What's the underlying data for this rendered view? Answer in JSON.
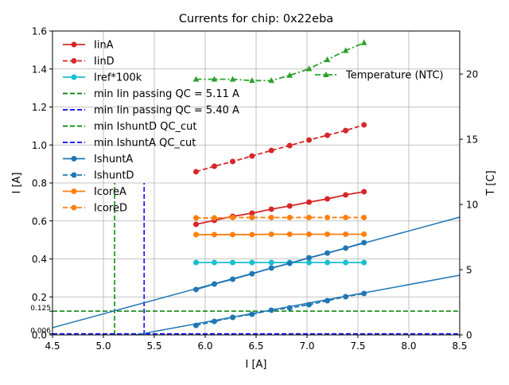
{
  "chart_data": {
    "type": "line",
    "title": "Currents for chip: 0x22eba",
    "xlabel": "I [A]",
    "ylabel": "I [A]",
    "ylabel_right": "T [C]",
    "xlim": [
      4.5,
      8.5
    ],
    "ylim": [
      0.0,
      1.6
    ],
    "ylim_right": [
      0,
      23.3
    ],
    "grid": true,
    "x_ticks": [
      4.5,
      5.0,
      5.5,
      6.0,
      6.5,
      7.0,
      7.5,
      8.0,
      8.5
    ],
    "x_tick_labels": [
      "4.5",
      "5.0",
      "5.5",
      "6.0",
      "6.5",
      "7.0",
      "7.5",
      "8.0",
      "8.5"
    ],
    "y_ticks": [
      0.0,
      0.2,
      0.4,
      0.6,
      0.8,
      1.0,
      1.2,
      1.4,
      1.6
    ],
    "y_tick_labels": [
      "0.0",
      "0.2",
      "0.4",
      "0.6",
      "0.8",
      "1.0",
      "1.2",
      "1.4",
      "1.6"
    ],
    "y_extra_ticks": [
      0.125,
      0.006
    ],
    "y_extra_tick_labels": [
      "0.125",
      "0.006"
    ],
    "y_right_ticks": [
      0,
      5,
      10,
      15,
      20
    ],
    "y_right_tick_labels": [
      "0",
      "5",
      "10",
      "15",
      "20"
    ],
    "x": [
      5.91,
      6.09,
      6.27,
      6.46,
      6.65,
      6.83,
      7.02,
      7.2,
      7.38,
      7.56
    ],
    "series": [
      {
        "name": "IinA",
        "color": "#d62728",
        "dash": "solid",
        "marker": "circle",
        "values": [
          0.582,
          0.603,
          0.624,
          0.641,
          0.662,
          0.679,
          0.699,
          0.716,
          0.737,
          0.754
        ]
      },
      {
        "name": "IinD",
        "color": "#d62728",
        "dash": "dashed",
        "marker": "circle",
        "values": [
          0.859,
          0.888,
          0.913,
          0.942,
          0.971,
          0.997,
          1.026,
          1.051,
          1.076,
          1.106
        ]
      },
      {
        "name": "Iref*100k",
        "color": "#17becf",
        "dash": "solid",
        "marker": "circle",
        "values": [
          0.381,
          0.381,
          0.381,
          0.381,
          0.381,
          0.381,
          0.381,
          0.381,
          0.381,
          0.381
        ]
      },
      {
        "name": "IshuntA",
        "color": "#1f77b4",
        "dash": "solid",
        "marker": "circle",
        "values": [
          0.239,
          0.268,
          0.293,
          0.322,
          0.352,
          0.377,
          0.406,
          0.431,
          0.457,
          0.486
        ]
      },
      {
        "name": "IshuntD",
        "color": "#1f77b4",
        "dash": "dashed",
        "marker": "circle",
        "values": [
          0.05,
          0.071,
          0.092,
          0.109,
          0.13,
          0.142,
          0.159,
          0.18,
          0.201,
          0.218
        ]
      },
      {
        "name": "IcoreA",
        "color": "#ff7f0e",
        "dash": "solid",
        "marker": "circle",
        "values": [
          0.528,
          0.528,
          0.528,
          0.528,
          0.53,
          0.53,
          0.53,
          0.53,
          0.53,
          0.53
        ]
      },
      {
        "name": "IcoreD",
        "color": "#ff7f0e",
        "dash": "dashed",
        "marker": "circle",
        "values": [
          0.616,
          0.616,
          0.618,
          0.618,
          0.618,
          0.618,
          0.618,
          0.618,
          0.618,
          0.618
        ]
      }
    ],
    "fit_lines": [
      {
        "name": "IshuntA fit",
        "color": "#1f77b4",
        "x": [
          4.5,
          8.5
        ],
        "y": [
          0.038,
          0.62
        ]
      },
      {
        "name": "IshuntD fit",
        "color": "#1f77b4",
        "x": [
          5.32,
          8.5
        ],
        "y": [
          0.0,
          0.314
        ]
      }
    ],
    "reference_lines": [
      {
        "name": "min Iin passing QC = 5.11 A",
        "orientation": "vertical",
        "value": 5.11,
        "color": "#008000",
        "y_range": [
          0.0,
          0.8
        ]
      },
      {
        "name": "min Iin passing QC = 5.40 A",
        "orientation": "vertical",
        "value": 5.4,
        "color": "#0000ff",
        "y_range": [
          0.0,
          0.8
        ]
      },
      {
        "name": "min IshuntD QC_cut",
        "orientation": "horizontal",
        "value": 0.125,
        "color": "#008000"
      },
      {
        "name": "min IshuntA QC_cut",
        "orientation": "horizontal",
        "value": 0.006,
        "color": "#0000ff"
      }
    ],
    "right_series": [
      {
        "name": "Temperature (NTC)",
        "color": "#2ca02c",
        "dash": "dashdot",
        "marker": "triangle",
        "values": [
          19.6,
          19.6,
          19.6,
          19.5,
          19.5,
          19.9,
          20.4,
          21.1,
          21.8,
          22.4
        ]
      }
    ],
    "legend": {
      "placement": "top-left",
      "entries": [
        {
          "label": "IinA",
          "color": "#d62728",
          "dash": "solid",
          "marker": "circle"
        },
        {
          "label": "IinD",
          "color": "#d62728",
          "dash": "dashed",
          "marker": "circle"
        },
        {
          "label": "Iref*100k",
          "color": "#17becf",
          "dash": "solid",
          "marker": "circle"
        },
        {
          "label": "min Iin passing QC = 5.11 A",
          "color": "#008000",
          "dash": "dashed",
          "marker": "none"
        },
        {
          "label": "min Iin passing QC = 5.40 A",
          "color": "#0000ff",
          "dash": "dashed",
          "marker": "none"
        },
        {
          "label": "min IshuntD QC_cut",
          "color": "#008000",
          "dash": "dashed",
          "marker": "none"
        },
        {
          "label": "min IshuntA QC_cut",
          "color": "#0000ff",
          "dash": "dashed",
          "marker": "none"
        },
        {
          "label": "IshuntA",
          "color": "#1f77b4",
          "dash": "solid",
          "marker": "circle"
        },
        {
          "label": "IshuntD",
          "color": "#1f77b4",
          "dash": "dashed",
          "marker": "circle"
        },
        {
          "label": "IcoreA",
          "color": "#ff7f0e",
          "dash": "solid",
          "marker": "circle"
        },
        {
          "label": "IcoreD",
          "color": "#ff7f0e",
          "dash": "dashed",
          "marker": "circle"
        }
      ],
      "right_placement": "upper-right",
      "right_entries": [
        {
          "label": "Temperature (NTC)",
          "color": "#2ca02c",
          "dash": "dashdot",
          "marker": "triangle"
        }
      ]
    }
  }
}
